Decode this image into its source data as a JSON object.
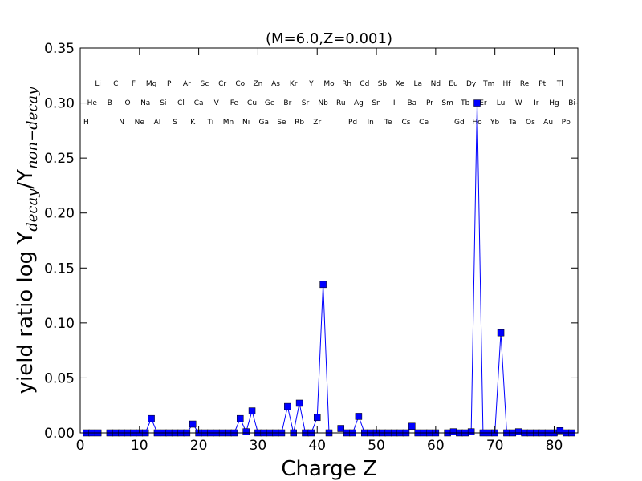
{
  "chart_data": {
    "type": "line",
    "title": "(M=6.0,Z=0.001)",
    "xlabel": "Charge Z",
    "ylabel": {
      "prefix": "yield ratio log Y",
      "sub1": "decay",
      "slash": "/Y",
      "sub2": "non−decay"
    },
    "xlim": [
      0,
      84
    ],
    "ylim": [
      0,
      0.35
    ],
    "x_ticks": [
      0,
      10,
      20,
      30,
      40,
      50,
      60,
      70,
      80
    ],
    "y_ticks": [
      "0.00",
      "0.05",
      "0.10",
      "0.15",
      "0.20",
      "0.25",
      "0.30",
      "0.35"
    ],
    "grid": false,
    "series": [
      {
        "color": "#0000ff",
        "marker": "square",
        "segments": [
          {
            "x": [
              1,
              2,
              3
            ],
            "y": [
              0,
              0,
              0
            ]
          },
          {
            "x": [
              5,
              6,
              7,
              8,
              9,
              10,
              11,
              12,
              13,
              14,
              15,
              16,
              17,
              18,
              19,
              20,
              21,
              22,
              23,
              24,
              25,
              26,
              27,
              28,
              29,
              30,
              31,
              32,
              33,
              34,
              35,
              36,
              37,
              38,
              39,
              40,
              41,
              42
            ],
            "y": [
              0,
              0,
              0,
              0,
              0,
              0,
              0,
              0.013,
              0,
              0,
              0,
              0,
              0,
              0,
              0.008,
              0,
              0,
              0,
              0,
              0,
              0,
              0,
              0.013,
              0.001,
              0.02,
              0,
              0,
              0,
              0,
              0,
              0.024,
              0,
              0.027,
              0,
              0,
              0.014,
              0.135,
              0
            ]
          },
          {
            "x": [
              44,
              45,
              46,
              47,
              48,
              49,
              50,
              51,
              52,
              53,
              54,
              55,
              56,
              57,
              58,
              59,
              60
            ],
            "y": [
              0.004,
              0,
              0,
              0.015,
              0,
              0,
              0,
              0,
              0,
              0,
              0,
              0,
              0.006,
              0,
              0,
              0,
              0
            ]
          },
          {
            "x": [
              62,
              63,
              64,
              65,
              66,
              67,
              68,
              69,
              70,
              71,
              72,
              73,
              74,
              75,
              76,
              77,
              78,
              79,
              80,
              81,
              82,
              83
            ],
            "y": [
              0,
              0.001,
              0,
              0,
              0.001,
              0.3,
              0,
              0,
              0,
              0.091,
              0,
              0,
              0.001,
              0,
              0,
              0,
              0,
              0,
              0,
              0.002,
              0,
              0
            ]
          }
        ]
      }
    ],
    "element_labels": [
      {
        "z": 1,
        "symbol": "H"
      },
      {
        "z": 2,
        "symbol": "He"
      },
      {
        "z": 3,
        "symbol": "Li"
      },
      {
        "z": 5,
        "symbol": "B"
      },
      {
        "z": 6,
        "symbol": "C"
      },
      {
        "z": 7,
        "symbol": "N"
      },
      {
        "z": 8,
        "symbol": "O"
      },
      {
        "z": 9,
        "symbol": "F"
      },
      {
        "z": 10,
        "symbol": "Ne"
      },
      {
        "z": 11,
        "symbol": "Na"
      },
      {
        "z": 12,
        "symbol": "Mg"
      },
      {
        "z": 13,
        "symbol": "Al"
      },
      {
        "z": 14,
        "symbol": "Si"
      },
      {
        "z": 15,
        "symbol": "P"
      },
      {
        "z": 16,
        "symbol": "S"
      },
      {
        "z": 17,
        "symbol": "Cl"
      },
      {
        "z": 18,
        "symbol": "Ar"
      },
      {
        "z": 19,
        "symbol": "K"
      },
      {
        "z": 20,
        "symbol": "Ca"
      },
      {
        "z": 21,
        "symbol": "Sc"
      },
      {
        "z": 22,
        "symbol": "Ti"
      },
      {
        "z": 23,
        "symbol": "V"
      },
      {
        "z": 24,
        "symbol": "Cr"
      },
      {
        "z": 25,
        "symbol": "Mn"
      },
      {
        "z": 26,
        "symbol": "Fe"
      },
      {
        "z": 27,
        "symbol": "Co"
      },
      {
        "z": 28,
        "symbol": "Ni"
      },
      {
        "z": 29,
        "symbol": "Cu"
      },
      {
        "z": 30,
        "symbol": "Zn"
      },
      {
        "z": 31,
        "symbol": "Ga"
      },
      {
        "z": 32,
        "symbol": "Ge"
      },
      {
        "z": 33,
        "symbol": "As"
      },
      {
        "z": 34,
        "symbol": "Se"
      },
      {
        "z": 35,
        "symbol": "Br"
      },
      {
        "z": 36,
        "symbol": "Kr"
      },
      {
        "z": 37,
        "symbol": "Rb"
      },
      {
        "z": 38,
        "symbol": "Sr"
      },
      {
        "z": 39,
        "symbol": "Y"
      },
      {
        "z": 40,
        "symbol": "Zr"
      },
      {
        "z": 41,
        "symbol": "Nb"
      },
      {
        "z": 42,
        "symbol": "Mo"
      },
      {
        "z": 44,
        "symbol": "Ru"
      },
      {
        "z": 45,
        "symbol": "Rh"
      },
      {
        "z": 46,
        "symbol": "Pd"
      },
      {
        "z": 47,
        "symbol": "Ag"
      },
      {
        "z": 48,
        "symbol": "Cd"
      },
      {
        "z": 49,
        "symbol": "In"
      },
      {
        "z": 50,
        "symbol": "Sn"
      },
      {
        "z": 51,
        "symbol": "Sb"
      },
      {
        "z": 52,
        "symbol": "Te"
      },
      {
        "z": 53,
        "symbol": "I"
      },
      {
        "z": 54,
        "symbol": "Xe"
      },
      {
        "z": 55,
        "symbol": "Cs"
      },
      {
        "z": 56,
        "symbol": "Ba"
      },
      {
        "z": 57,
        "symbol": "La"
      },
      {
        "z": 58,
        "symbol": "Ce"
      },
      {
        "z": 59,
        "symbol": "Pr"
      },
      {
        "z": 60,
        "symbol": "Nd"
      },
      {
        "z": 62,
        "symbol": "Sm"
      },
      {
        "z": 63,
        "symbol": "Eu"
      },
      {
        "z": 64,
        "symbol": "Gd"
      },
      {
        "z": 65,
        "symbol": "Tb"
      },
      {
        "z": 66,
        "symbol": "Dy"
      },
      {
        "z": 67,
        "symbol": "Ho"
      },
      {
        "z": 68,
        "symbol": "Er"
      },
      {
        "z": 69,
        "symbol": "Tm"
      },
      {
        "z": 70,
        "symbol": "Yb"
      },
      {
        "z": 71,
        "symbol": "Lu"
      },
      {
        "z": 72,
        "symbol": "Hf"
      },
      {
        "z": 73,
        "symbol": "Ta"
      },
      {
        "z": 74,
        "symbol": "W"
      },
      {
        "z": 75,
        "symbol": "Re"
      },
      {
        "z": 76,
        "symbol": "Os"
      },
      {
        "z": 77,
        "symbol": "Ir"
      },
      {
        "z": 78,
        "symbol": "Pt"
      },
      {
        "z": 79,
        "symbol": "Au"
      },
      {
        "z": 80,
        "symbol": "Hg"
      },
      {
        "z": 81,
        "symbol": "Tl"
      },
      {
        "z": 82,
        "symbol": "Pb"
      },
      {
        "z": 83,
        "symbol": "Bi"
      }
    ]
  }
}
